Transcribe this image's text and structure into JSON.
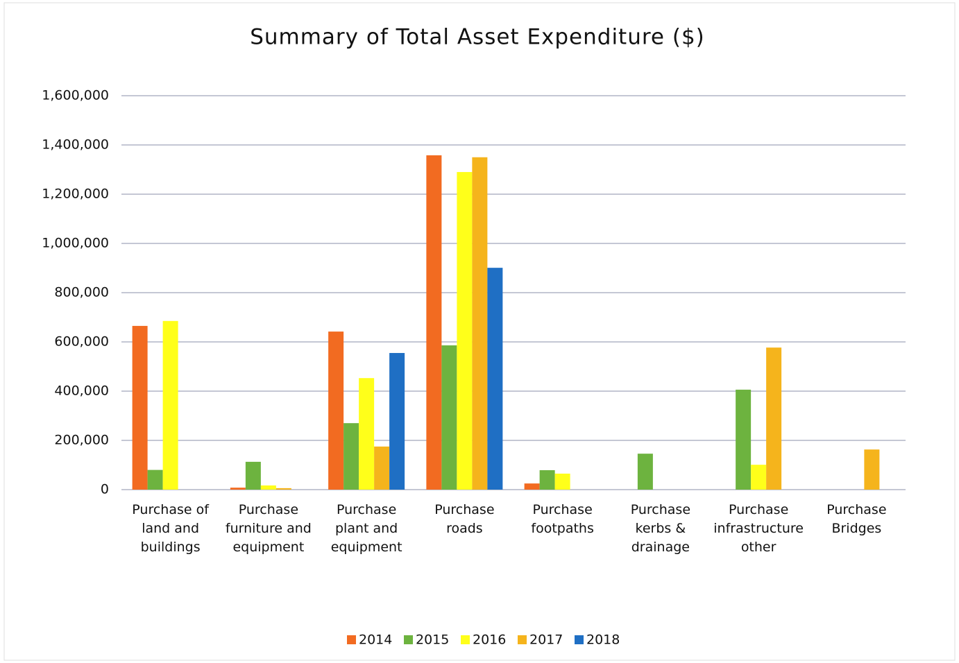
{
  "chart_data": {
    "type": "bar",
    "title": "Summary of Total Asset Expenditure ($)",
    "categories": [
      "Purchase of land and buildings",
      "Purchase furniture and equipment",
      "Purchase plant and equipment",
      "Purchase roads",
      "Purchase footpaths",
      "Purchase kerbs & drainage",
      "Purchase infrastructure other",
      "Purchase Bridges"
    ],
    "series": [
      {
        "name": "2014",
        "color": "#f26b21",
        "values": [
          665000,
          8000,
          642000,
          1358000,
          25000,
          0,
          0,
          0
        ]
      },
      {
        "name": "2015",
        "color": "#6db33f",
        "values": [
          80000,
          113000,
          270000,
          586000,
          79000,
          146000,
          406000,
          0
        ]
      },
      {
        "name": "2016",
        "color": "#ffff1a",
        "values": [
          685000,
          17000,
          453000,
          1290000,
          65000,
          0,
          101000,
          0
        ]
      },
      {
        "name": "2017",
        "color": "#f5b41c",
        "values": [
          0,
          6000,
          175000,
          1350000,
          0,
          0,
          577000,
          163000
        ]
      },
      {
        "name": "2018",
        "color": "#1f6fc4",
        "values": [
          0,
          0,
          555000,
          901000,
          0,
          0,
          0,
          0
        ]
      }
    ],
    "ylim": [
      0,
      1600000
    ],
    "yticks": [
      0,
      {
        "value": 200000,
        "label": "200,000"
      },
      {
        "value": 400000,
        "label": "400,000"
      },
      {
        "value": 600000,
        "label": "600,000"
      },
      {
        "value": 800000,
        "label": "800,000"
      },
      {
        "value": 1000000,
        "label": "1,000,000"
      },
      {
        "value": 1200000,
        "label": "1,200,000"
      },
      {
        "value": 1400000,
        "label": "1,400,000"
      },
      {
        "value": 1600000,
        "label": "1,600,000"
      }
    ],
    "grid": true,
    "legend": "bottom"
  }
}
